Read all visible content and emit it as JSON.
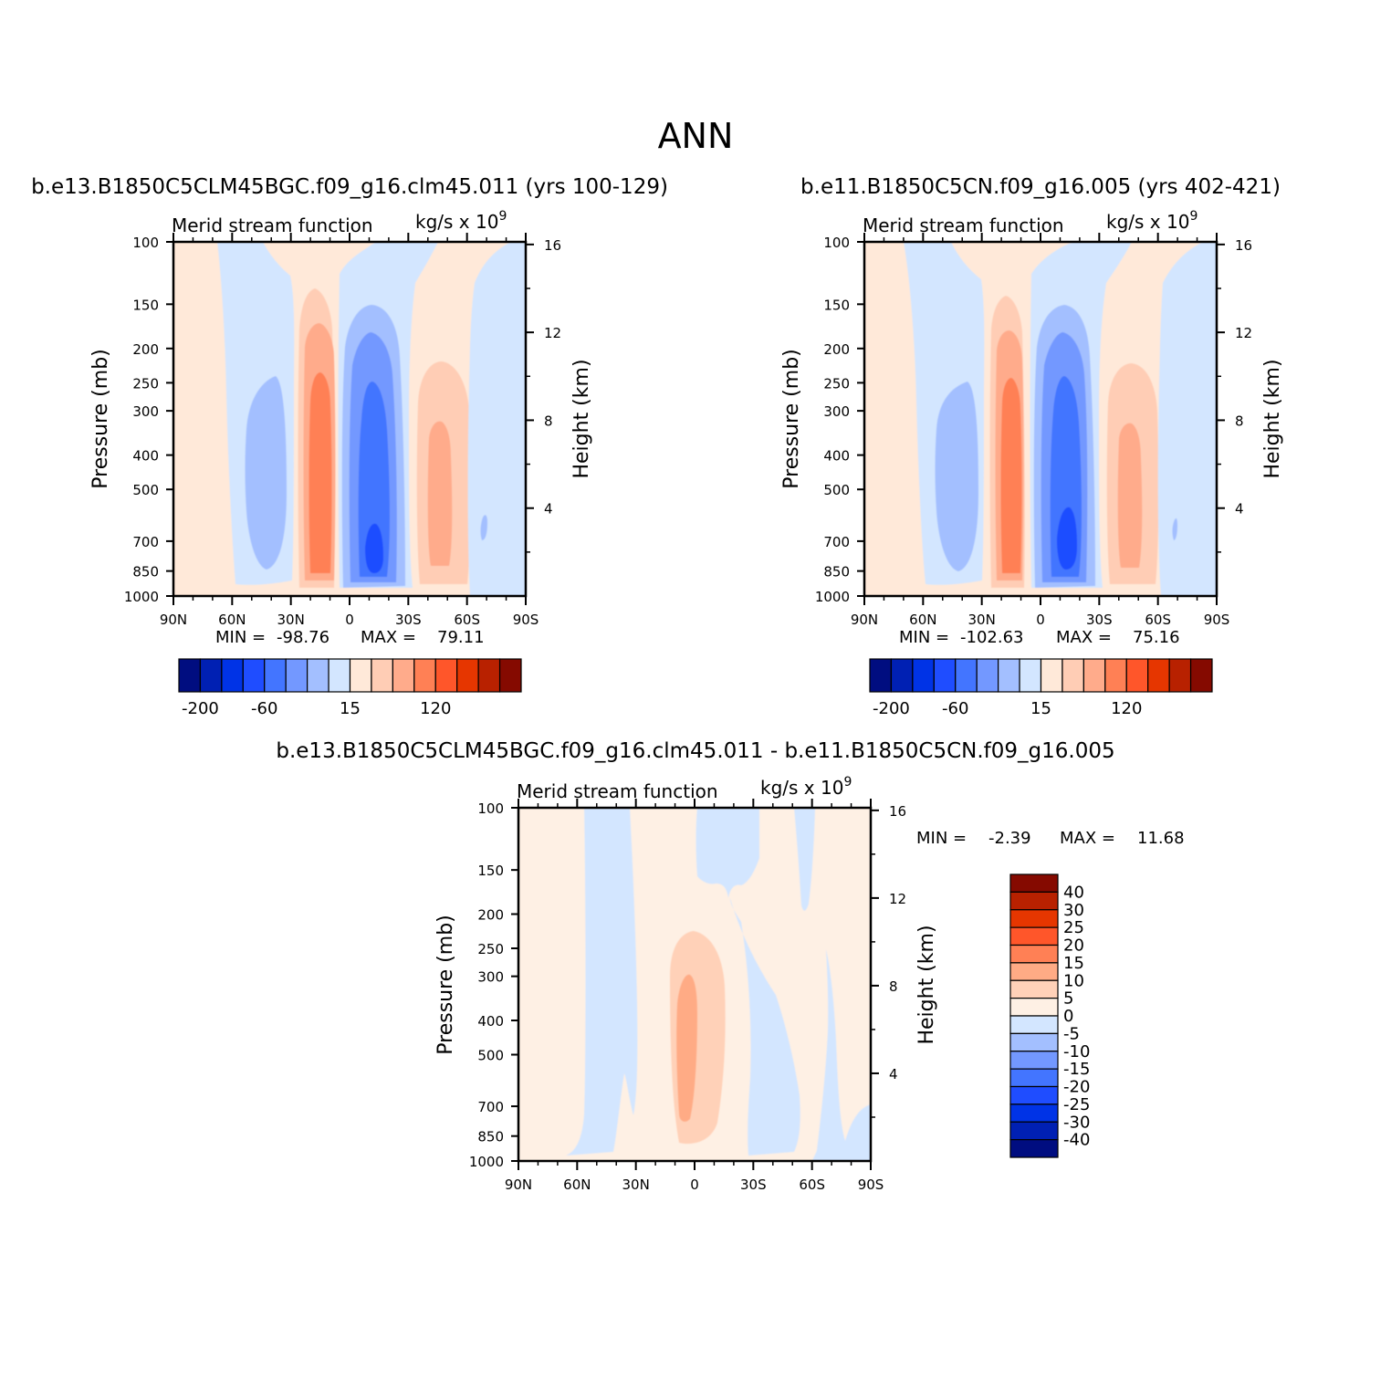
{
  "figure": {
    "title": "ANN"
  },
  "colors": {
    "panel_scale": [
      "#000d80",
      "#0020b3",
      "#0033e6",
      "#1f4dff",
      "#4375ff",
      "#7398ff",
      "#a3bfff",
      "#d3e6ff",
      "#ffe9d9",
      "#ffcdb5",
      "#ffab8b",
      "#ff8055",
      "#ff562a",
      "#e63600",
      "#b82100",
      "#850a00"
    ],
    "diff_scale": [
      "#000d80",
      "#0020b3",
      "#0033e6",
      "#1f4dff",
      "#4375ff",
      "#7398ff",
      "#a3bfff",
      "#d3e6ff",
      "#fef0e4",
      "#ffd1b8",
      "#ffab85",
      "#ff8055",
      "#ff562a",
      "#e63600",
      "#b82100",
      "#850a00"
    ]
  },
  "chart_data": [
    {
      "type": "heatmap",
      "title": "b.e13.B1850C5CLM45BGC.f09_g16.clm45.011 (yrs 100-129)",
      "left_label": "Merid stream function",
      "right_label": "kg/s x 10",
      "right_label_exp": "9",
      "ylabel": "Pressure (mb)",
      "ylabel_right": "Height (km)",
      "x_ticks": [
        "90N",
        "60N",
        "30N",
        "0",
        "30S",
        "60S",
        "90S"
      ],
      "y_ticks": [
        "100",
        "150",
        "200",
        "250",
        "300",
        "400",
        "500",
        "700",
        "850",
        "1000"
      ],
      "y_right_ticks": [
        "16",
        "12",
        "8",
        "4"
      ],
      "xlim": [
        90,
        -90
      ],
      "ylim": [
        1000,
        100
      ],
      "min_label": "MIN =",
      "min_value": "-98.76",
      "max_label": "MAX =",
      "max_value": "79.11",
      "colorbar_labels": [
        "-200",
        "-60",
        "15",
        "120"
      ],
      "cells": [
        {
          "lat": 70,
          "p": 500,
          "level": 8
        },
        {
          "lat": 40,
          "p": 500,
          "level": 6
        },
        {
          "lat": 15,
          "p": 500,
          "level": 11
        },
        {
          "lat": -10,
          "p": 600,
          "level": 3
        },
        {
          "lat": -45,
          "p": 500,
          "level": 10
        },
        {
          "lat": -75,
          "p": 500,
          "level": 7
        }
      ]
    },
    {
      "type": "heatmap",
      "title": "b.e11.B1850C5CN.f09_g16.005 (yrs 402-421)",
      "left_label": "Merid stream function",
      "right_label": "kg/s x 10",
      "right_label_exp": "9",
      "ylabel": "Pressure (mb)",
      "ylabel_right": "Height (km)",
      "x_ticks": [
        "90N",
        "60N",
        "30N",
        "0",
        "30S",
        "60S",
        "90S"
      ],
      "y_ticks": [
        "100",
        "150",
        "200",
        "250",
        "300",
        "400",
        "500",
        "700",
        "850",
        "1000"
      ],
      "y_right_ticks": [
        "16",
        "12",
        "8",
        "4"
      ],
      "xlim": [
        90,
        -90
      ],
      "ylim": [
        1000,
        100
      ],
      "min_label": "MIN =",
      "min_value": "-102.63",
      "max_label": "MAX =",
      "max_value": "75.16",
      "colorbar_labels": [
        "-200",
        "-60",
        "15",
        "120"
      ],
      "cells": [
        {
          "lat": 70,
          "p": 500,
          "level": 8
        },
        {
          "lat": 40,
          "p": 500,
          "level": 6
        },
        {
          "lat": 15,
          "p": 500,
          "level": 11
        },
        {
          "lat": -10,
          "p": 600,
          "level": 3
        },
        {
          "lat": -45,
          "p": 500,
          "level": 10
        },
        {
          "lat": -75,
          "p": 500,
          "level": 7
        }
      ]
    },
    {
      "type": "heatmap",
      "title": "b.e13.B1850C5CLM45BGC.f09_g16.clm45.011 - b.e11.B1850C5CN.f09_g16.005",
      "left_label": "Merid stream function",
      "right_label": "kg/s x 10",
      "right_label_exp": "9",
      "ylabel": "Pressure (mb)",
      "ylabel_right": "Height (km)",
      "x_ticks": [
        "90N",
        "60N",
        "30N",
        "0",
        "30S",
        "60S",
        "90S"
      ],
      "y_ticks": [
        "100",
        "150",
        "200",
        "250",
        "300",
        "400",
        "500",
        "700",
        "850",
        "1000"
      ],
      "y_right_ticks": [
        "16",
        "12",
        "8",
        "4"
      ],
      "xlim": [
        90,
        -90
      ],
      "ylim": [
        1000,
        100
      ],
      "min_label": "MIN =",
      "min_value": "-2.39",
      "max_label": "MAX =",
      "max_value": "11.68",
      "colorbar_labels": [
        "40",
        "30",
        "25",
        "20",
        "15",
        "10",
        "5",
        "0",
        "-5",
        "-10",
        "-15",
        "-20",
        "-25",
        "-30",
        "-40"
      ],
      "cells": [
        {
          "lat": 45,
          "p": 500,
          "level": 7
        },
        {
          "lat": 5,
          "p": 400,
          "level": 9
        },
        {
          "lat": -35,
          "p": 300,
          "level": 7
        },
        {
          "lat": -70,
          "p": 300,
          "level": 7
        }
      ]
    }
  ]
}
